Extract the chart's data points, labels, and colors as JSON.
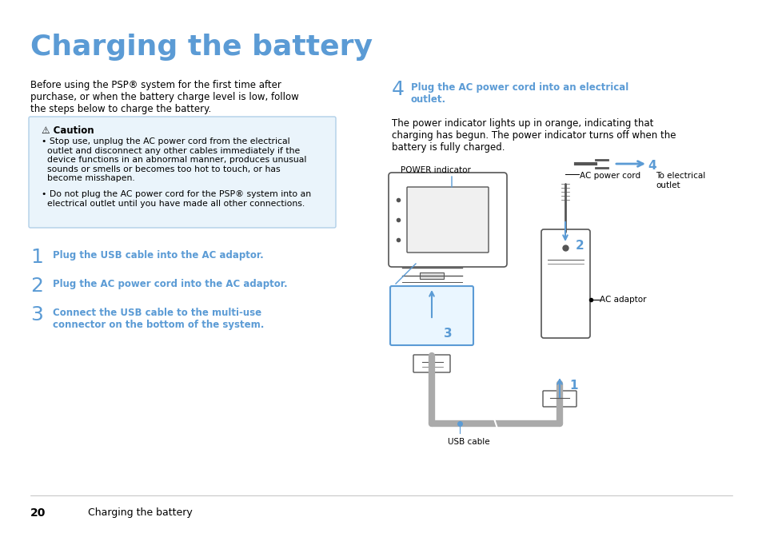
{
  "title": "Charging the battery",
  "title_color": "#5b9bd5",
  "bg_color": "#ffffff",
  "intro_text": "Before using the PSP® system for the first time after\npurchase, or when the battery charge level is low, follow\nthe steps below to charge the battery.",
  "caution_title": "⚠ Caution",
  "caution_bullets": [
    "Stop use, unplug the AC power cord from the electrical\noutlet and disconnect any other cables immediately if the\ndevice functions in an abnormal manner, produces unusual\nsounds or smells or becomes too hot to touch, or has\nbecome misshapen.",
    "Do not plug the AC power cord for the PSP® system into an\nelectrical outlet until you have made all other connections."
  ],
  "step1": "Plug the USB cable into the AC adaptor.",
  "step2": "Plug the AC power cord into the AC adaptor.",
  "step3": "Connect the USB cable to the multi-use\nconnector on the bottom of the system.",
  "step4_title": "Plug the AC power cord into an electrical\noutlet.",
  "step4_body": "The power indicator lights up in orange, indicating that\ncharging has begun. The power indicator turns off when the\nbattery is fully charged.",
  "label_power_indicator": "POWER indicator",
  "label_ac_power_cord": "AC power cord",
  "label_to_electrical": "To electrical\noutlet",
  "label_ac_adaptor": "AC adaptor",
  "label_usb_cable": "USB cable",
  "step_color": "#5b9bd5",
  "body_color": "#000000",
  "caution_bg": "#eaf4fb",
  "caution_border": "#b0cfe8",
  "page_number": "20",
  "page_label": "Charging the battery"
}
